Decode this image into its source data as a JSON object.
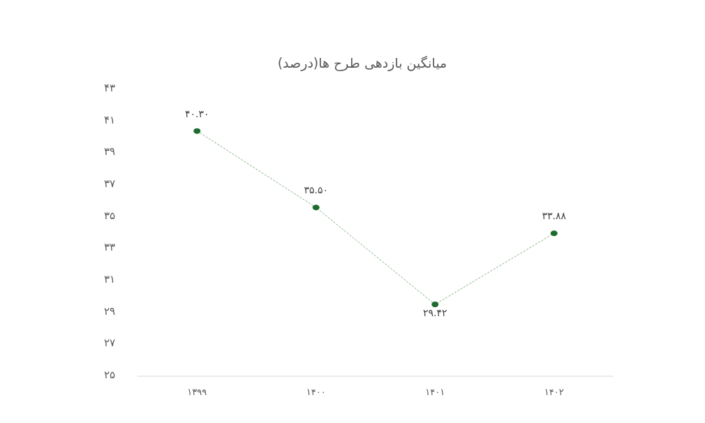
{
  "chart_data": {
    "type": "line",
    "title": "میانگین بازدهی طرح ها(درصد)",
    "categories": [
      "۱۳۹۹",
      "۱۴۰۰",
      "۱۴۰۱",
      "۱۴۰۲"
    ],
    "series": [
      {
        "color": "#1e6b30",
        "values": [
          40.3,
          35.5,
          29.42,
          33.88
        ],
        "value_labels": [
          "۴۰.۳۰",
          "۳۵.۵۰",
          "۲۹.۴۲",
          "۳۳.۸۸"
        ]
      }
    ],
    "ylim": [
      25,
      43
    ],
    "yticks": [
      {
        "value": 25,
        "label": "۲۵"
      },
      {
        "value": 27,
        "label": "۲۷"
      },
      {
        "value": 29,
        "label": "۲۹"
      },
      {
        "value": 31,
        "label": "۳۱"
      },
      {
        "value": 33,
        "label": "۳۳"
      },
      {
        "value": 35,
        "label": "۳۵"
      },
      {
        "value": 37,
        "label": "۳۷"
      },
      {
        "value": 39,
        "label": "۳۹"
      },
      {
        "value": 41,
        "label": "۴۱"
      },
      {
        "value": 43,
        "label": "۴۳"
      }
    ],
    "marker": "circle",
    "line_style": "dashed"
  }
}
